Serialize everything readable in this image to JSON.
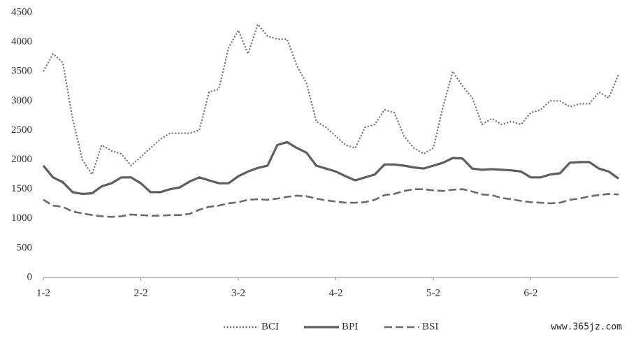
{
  "chart_data": {
    "type": "line",
    "categories": [
      "1-2",
      null,
      null,
      null,
      null,
      null,
      null,
      null,
      null,
      null,
      "2-2",
      null,
      null,
      null,
      null,
      null,
      null,
      null,
      null,
      null,
      "3-2",
      null,
      null,
      null,
      null,
      null,
      null,
      null,
      null,
      null,
      "4-2",
      null,
      null,
      null,
      null,
      null,
      null,
      null,
      null,
      null,
      "5-2",
      null,
      null,
      null,
      null,
      null,
      null,
      null,
      null,
      null,
      "6-2",
      null,
      null,
      null,
      null,
      null,
      null,
      null,
      null,
      null
    ],
    "series": [
      {
        "name": "BCI",
        "color": "#6e6e6e",
        "style": "dotted",
        "values": [
          3500,
          3800,
          3650,
          2700,
          2000,
          1750,
          2250,
          2150,
          2100,
          1900,
          2050,
          2200,
          2350,
          2450,
          2450,
          2450,
          2500,
          3150,
          3200,
          3900,
          4200,
          3800,
          4300,
          4100,
          4050,
          4050,
          3600,
          3300,
          2650,
          2550,
          2400,
          2250,
          2200,
          2550,
          2600,
          2850,
          2800,
          2400,
          2200,
          2100,
          2200,
          2900,
          3500,
          3250,
          3050,
          2600,
          2700,
          2600,
          2650,
          2600,
          2800,
          2850,
          3000,
          3000,
          2900,
          2950,
          2950,
          3150,
          3050,
          3450
        ]
      },
      {
        "name": "BPI",
        "color": "#5e5e5e",
        "style": "solid",
        "values": [
          1900,
          1700,
          1620,
          1450,
          1420,
          1430,
          1550,
          1600,
          1700,
          1700,
          1600,
          1450,
          1450,
          1500,
          1530,
          1630,
          1700,
          1650,
          1600,
          1600,
          1720,
          1800,
          1860,
          1900,
          2250,
          2300,
          2200,
          2120,
          1900,
          1850,
          1800,
          1720,
          1650,
          1700,
          1750,
          1920,
          1920,
          1900,
          1870,
          1850,
          1900,
          1950,
          2030,
          2020,
          1850,
          1830,
          1840,
          1830,
          1820,
          1800,
          1700,
          1700,
          1750,
          1770,
          1950,
          1960,
          1960,
          1850,
          1800,
          1680
        ]
      },
      {
        "name": "BSI",
        "color": "#6a6a6a",
        "style": "dashed",
        "values": [
          1320,
          1220,
          1200,
          1120,
          1090,
          1060,
          1040,
          1030,
          1040,
          1070,
          1060,
          1050,
          1050,
          1060,
          1060,
          1080,
          1150,
          1200,
          1220,
          1260,
          1280,
          1320,
          1330,
          1320,
          1340,
          1370,
          1390,
          1380,
          1340,
          1310,
          1290,
          1270,
          1270,
          1280,
          1320,
          1400,
          1420,
          1470,
          1500,
          1500,
          1480,
          1470,
          1490,
          1500,
          1460,
          1410,
          1400,
          1350,
          1330,
          1300,
          1280,
          1270,
          1260,
          1270,
          1320,
          1340,
          1380,
          1400,
          1420,
          1410
        ]
      }
    ],
    "ylim": [
      0,
      4500
    ],
    "yticks": [
      0,
      500,
      1000,
      1500,
      2000,
      2500,
      3000,
      3500,
      4000,
      4500
    ],
    "grid": false,
    "legend": "bottom",
    "watermark": "www.365jz.com"
  }
}
